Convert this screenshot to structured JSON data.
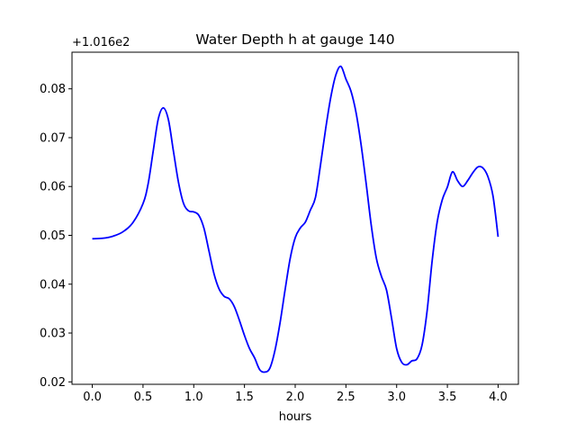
{
  "chart_data": {
    "type": "line",
    "title": "Water Depth h at gauge 140",
    "xlabel": "hours",
    "ylabel": "",
    "y_offset_label": "+1.016e2",
    "xlim": [
      -0.2,
      4.2
    ],
    "ylim": [
      0.0195,
      0.0875
    ],
    "x_ticks": [
      0.0,
      0.5,
      1.0,
      1.5,
      2.0,
      2.5,
      3.0,
      3.5,
      4.0
    ],
    "x_tick_labels": [
      "0.0",
      "0.5",
      "1.0",
      "1.5",
      "2.0",
      "2.5",
      "3.0",
      "3.5",
      "4.0"
    ],
    "y_ticks": [
      0.02,
      0.03,
      0.04,
      0.05,
      0.06,
      0.07,
      0.08
    ],
    "y_tick_labels": [
      "0.02",
      "0.03",
      "0.04",
      "0.05",
      "0.06",
      "0.07",
      "0.08"
    ],
    "grid": false,
    "series": [
      {
        "color": "#0000ff",
        "x": [
          0.0,
          0.1,
          0.2,
          0.3,
          0.4,
          0.5,
          0.55,
          0.6,
          0.65,
          0.7,
          0.75,
          0.8,
          0.85,
          0.9,
          0.95,
          1.0,
          1.05,
          1.1,
          1.15,
          1.2,
          1.25,
          1.3,
          1.35,
          1.4,
          1.45,
          1.5,
          1.55,
          1.6,
          1.65,
          1.7,
          1.75,
          1.8,
          1.85,
          1.9,
          1.95,
          2.0,
          2.05,
          2.1,
          2.15,
          2.2,
          2.25,
          2.3,
          2.35,
          2.4,
          2.45,
          2.5,
          2.55,
          2.6,
          2.65,
          2.7,
          2.75,
          2.8,
          2.85,
          2.9,
          2.95,
          3.0,
          3.05,
          3.1,
          3.15,
          3.2,
          3.25,
          3.3,
          3.35,
          3.4,
          3.45,
          3.5,
          3.55,
          3.6,
          3.65,
          3.7,
          3.75,
          3.8,
          3.85,
          3.9,
          3.95,
          4.0
        ],
        "y": [
          0.0493,
          0.0494,
          0.0498,
          0.0507,
          0.0526,
          0.0565,
          0.0605,
          0.0672,
          0.0738,
          0.0761,
          0.0737,
          0.0672,
          0.0608,
          0.0565,
          0.055,
          0.0548,
          0.0541,
          0.0515,
          0.0468,
          0.0421,
          0.039,
          0.0375,
          0.037,
          0.0354,
          0.0326,
          0.0295,
          0.0268,
          0.0249,
          0.0225,
          0.022,
          0.0228,
          0.0264,
          0.032,
          0.0388,
          0.0452,
          0.0495,
          0.0515,
          0.0527,
          0.0552,
          0.0578,
          0.0645,
          0.0718,
          0.0782,
          0.0828,
          0.0846,
          0.082,
          0.0795,
          0.0751,
          0.0685,
          0.0605,
          0.052,
          0.0453,
          0.0416,
          0.0388,
          0.033,
          0.0268,
          0.024,
          0.0235,
          0.0243,
          0.0247,
          0.0275,
          0.0345,
          0.0448,
          0.0528,
          0.0573,
          0.0599,
          0.063,
          0.0612,
          0.06,
          0.0612,
          0.0628,
          0.064,
          0.0638,
          0.062,
          0.058,
          0.0497
        ]
      }
    ]
  }
}
